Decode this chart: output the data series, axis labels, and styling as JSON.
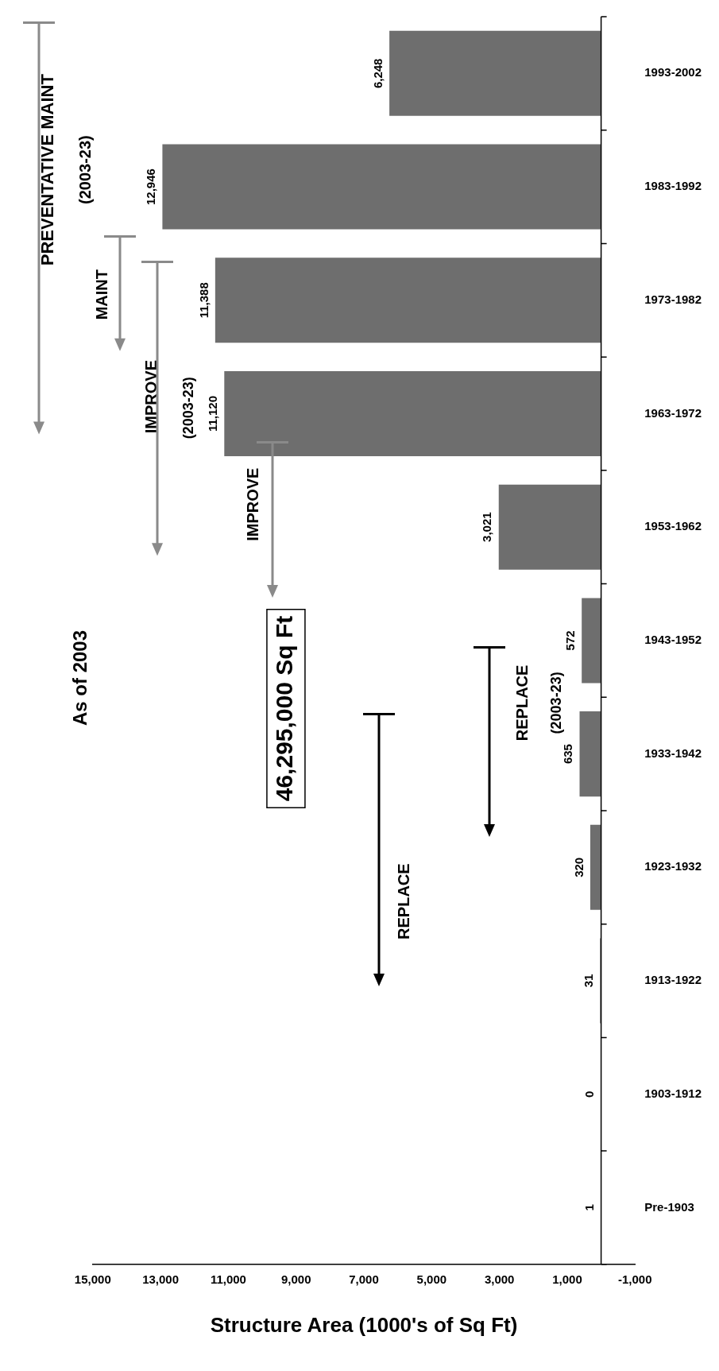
{
  "chart_data": {
    "type": "bar",
    "orientation": "horizontal",
    "title": "As of 2003",
    "xlabel": "Structure Area (1000's of Sq Ft)",
    "categories": [
      "1993-2002",
      "1983-1992",
      "1973-1982",
      "1963-1972",
      "1953-1962",
      "1943-1952",
      "1933-1942",
      "1923-1932",
      "1913-1922",
      "1903-1912",
      "Pre-1903"
    ],
    "values": [
      6248,
      12946,
      11388,
      11120,
      3021,
      572,
      635,
      320,
      31,
      0,
      1
    ],
    "color": "#6e6e6e",
    "xlim": [
      15000,
      -1000
    ],
    "xticks": [
      {
        "value": 15000,
        "label": "15,000"
      },
      {
        "value": 13000,
        "label": "13,000"
      },
      {
        "value": 11000,
        "label": "11,000"
      },
      {
        "value": 9000,
        "label": "9,000"
      },
      {
        "value": 7000,
        "label": "7,000"
      },
      {
        "value": 5000,
        "label": "5,000"
      },
      {
        "value": 3000,
        "label": "3,000"
      },
      {
        "value": 1000,
        "label": "1,000"
      },
      {
        "value": -1000,
        "label": "-1,000"
      }
    ],
    "value_labels": [
      "6,248",
      "12,946",
      "11,388",
      "11,120",
      "3,021",
      "572",
      "635",
      "320",
      "31",
      "0",
      "1"
    ],
    "grid": false,
    "legend": false,
    "annotations": [
      "PREVENTATIVE MAINT",
      "(2003-23)",
      "MAINT",
      "IMPROVE",
      "(2003-23)",
      "IMPROVE",
      "46,295,000 Sq Ft",
      "REPLACE",
      "REPLACE",
      "(2003-23)"
    ]
  }
}
